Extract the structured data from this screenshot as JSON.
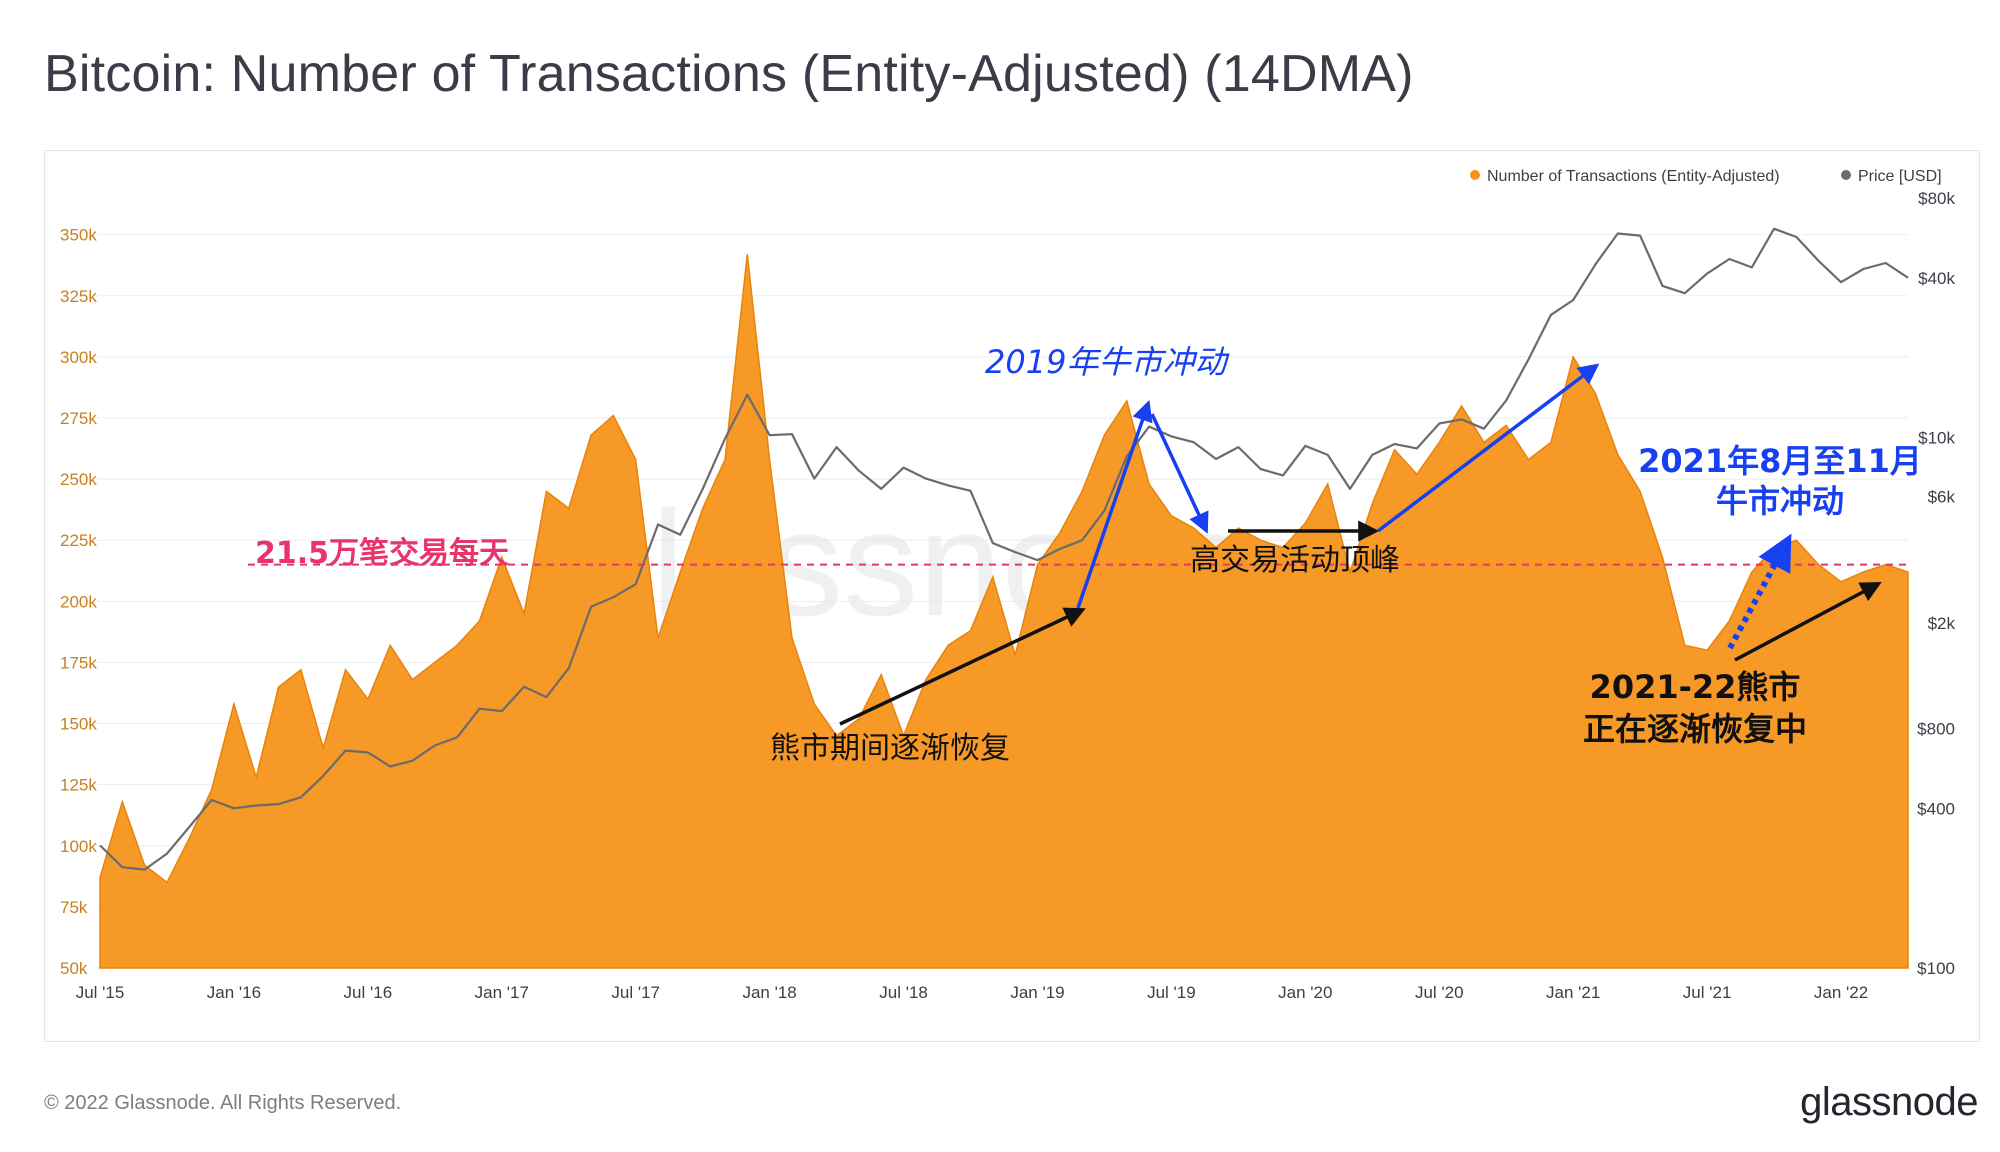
{
  "header": {
    "title": "Bitcoin: Number of Transactions (Entity-Adjusted) (14DMA)"
  },
  "footer": {
    "copyright": "© 2022 Glassnode. All Rights Reserved.",
    "logo": "glassnode"
  },
  "watermark": "glassnode",
  "colors": {
    "transactions": "#f7931a",
    "price": "#6b6b6b",
    "threshold": "#e8336b",
    "blue_annotation": "#1640f0",
    "black_annotation": "#111111",
    "grid": "#eceef2",
    "left_ticks": "#c8801f"
  },
  "chart_data": {
    "type": "area",
    "title": "Bitcoin: Number of Transactions (Entity-Adjusted) (14DMA)",
    "x_ticks": [
      "Jul '15",
      "Jan '16",
      "Jul '16",
      "Jan '17",
      "Jul '17",
      "Jan '18",
      "Jul '18",
      "Jan '19",
      "Jul '19",
      "Jan '20",
      "Jul '20",
      "Jan '21",
      "Jul '21",
      "Jan '22"
    ],
    "x_range": [
      "2015-07",
      "2022-04"
    ],
    "y_left": {
      "ticks": [
        "50k",
        "75k",
        "100k",
        "125k",
        "150k",
        "175k",
        "200k",
        "225k",
        "250k",
        "275k",
        "300k",
        "325k",
        "350k"
      ],
      "range": [
        50000,
        365000
      ]
    },
    "y_right": {
      "scale": "log",
      "ticks": [
        "$100",
        "$400",
        "$800",
        "$2k",
        "$6k",
        "$10k",
        "$40k",
        "$80k"
      ],
      "range": [
        100,
        80000
      ]
    },
    "legend": {
      "position": "top-right"
    },
    "grid": true,
    "series": [
      {
        "name": "Number of Transactions (Entity-Adjusted)",
        "axis": "left",
        "style": "area",
        "points": [
          [
            "2015-07",
            87000
          ],
          [
            "2015-08",
            118000
          ],
          [
            "2015-09",
            92000
          ],
          [
            "2015-10",
            85000
          ],
          [
            "2015-11",
            103000
          ],
          [
            "2015-12",
            123000
          ],
          [
            "2016-01",
            158000
          ],
          [
            "2016-02",
            128000
          ],
          [
            "2016-03",
            165000
          ],
          [
            "2016-04",
            172000
          ],
          [
            "2016-05",
            140000
          ],
          [
            "2016-06",
            172000
          ],
          [
            "2016-07",
            160000
          ],
          [
            "2016-08",
            182000
          ],
          [
            "2016-09",
            168000
          ],
          [
            "2016-10",
            175000
          ],
          [
            "2016-11",
            182000
          ],
          [
            "2016-12",
            192000
          ],
          [
            "2017-01",
            218000
          ],
          [
            "2017-02",
            195000
          ],
          [
            "2017-03",
            245000
          ],
          [
            "2017-04",
            238000
          ],
          [
            "2017-05",
            268000
          ],
          [
            "2017-06",
            276000
          ],
          [
            "2017-07",
            258000
          ],
          [
            "2017-08",
            185000
          ],
          [
            "2017-09",
            212000
          ],
          [
            "2017-10",
            238000
          ],
          [
            "2017-11",
            258000
          ],
          [
            "2017-12",
            342000
          ],
          [
            "2018-01",
            258000
          ],
          [
            "2018-02",
            185000
          ],
          [
            "2018-03",
            158000
          ],
          [
            "2018-04",
            145000
          ],
          [
            "2018-05",
            152000
          ],
          [
            "2018-06",
            170000
          ],
          [
            "2018-07",
            145000
          ],
          [
            "2018-08",
            168000
          ],
          [
            "2018-09",
            182000
          ],
          [
            "2018-10",
            188000
          ],
          [
            "2018-11",
            210000
          ],
          [
            "2018-12",
            178000
          ],
          [
            "2019-01",
            215000
          ],
          [
            "2019-02",
            228000
          ],
          [
            "2019-03",
            245000
          ],
          [
            "2019-04",
            268000
          ],
          [
            "2019-05",
            282000
          ],
          [
            "2019-06",
            248000
          ],
          [
            "2019-07",
            235000
          ],
          [
            "2019-08",
            230000
          ],
          [
            "2019-09",
            222000
          ],
          [
            "2019-10",
            230000
          ],
          [
            "2019-11",
            225000
          ],
          [
            "2019-12",
            222000
          ],
          [
            "2020-01",
            232000
          ],
          [
            "2020-02",
            248000
          ],
          [
            "2020-03",
            212000
          ],
          [
            "2020-04",
            240000
          ],
          [
            "2020-05",
            262000
          ],
          [
            "2020-06",
            252000
          ],
          [
            "2020-07",
            265000
          ],
          [
            "2020-08",
            280000
          ],
          [
            "2020-09",
            265000
          ],
          [
            "2020-10",
            272000
          ],
          [
            "2020-11",
            258000
          ],
          [
            "2020-12",
            265000
          ],
          [
            "2021-01",
            300000
          ],
          [
            "2021-02",
            285000
          ],
          [
            "2021-03",
            260000
          ],
          [
            "2021-04",
            245000
          ],
          [
            "2021-05",
            218000
          ],
          [
            "2021-06",
            182000
          ],
          [
            "2021-07",
            180000
          ],
          [
            "2021-08",
            192000
          ],
          [
            "2021-09",
            212000
          ],
          [
            "2021-10",
            222000
          ],
          [
            "2021-11",
            225000
          ],
          [
            "2021-12",
            215000
          ],
          [
            "2022-01",
            208000
          ],
          [
            "2022-02",
            212000
          ],
          [
            "2022-03",
            215000
          ],
          [
            "2022-04",
            212000
          ]
        ]
      },
      {
        "name": "Price [USD]",
        "axis": "right",
        "style": "line",
        "points": [
          [
            "2015-07",
            290
          ],
          [
            "2015-08",
            240
          ],
          [
            "2015-09",
            235
          ],
          [
            "2015-10",
            270
          ],
          [
            "2015-11",
            340
          ],
          [
            "2015-12",
            430
          ],
          [
            "2016-01",
            400
          ],
          [
            "2016-02",
            410
          ],
          [
            "2016-03",
            415
          ],
          [
            "2016-04",
            440
          ],
          [
            "2016-05",
            530
          ],
          [
            "2016-06",
            660
          ],
          [
            "2016-07",
            650
          ],
          [
            "2016-08",
            575
          ],
          [
            "2016-09",
            605
          ],
          [
            "2016-10",
            690
          ],
          [
            "2016-11",
            740
          ],
          [
            "2016-12",
            950
          ],
          [
            "2017-01",
            930
          ],
          [
            "2017-02",
            1150
          ],
          [
            "2017-03",
            1050
          ],
          [
            "2017-04",
            1350
          ],
          [
            "2017-05",
            2300
          ],
          [
            "2017-06",
            2500
          ],
          [
            "2017-07",
            2800
          ],
          [
            "2017-08",
            4700
          ],
          [
            "2017-09",
            4300
          ],
          [
            "2017-10",
            6400
          ],
          [
            "2017-11",
            9900
          ],
          [
            "2017-12",
            14500
          ],
          [
            "2018-01",
            10200
          ],
          [
            "2018-02",
            10300
          ],
          [
            "2018-03",
            7000
          ],
          [
            "2018-04",
            9200
          ],
          [
            "2018-05",
            7500
          ],
          [
            "2018-06",
            6400
          ],
          [
            "2018-07",
            7700
          ],
          [
            "2018-08",
            7000
          ],
          [
            "2018-09",
            6600
          ],
          [
            "2018-10",
            6300
          ],
          [
            "2018-11",
            4000
          ],
          [
            "2018-12",
            3700
          ],
          [
            "2019-01",
            3450
          ],
          [
            "2019-02",
            3800
          ],
          [
            "2019-03",
            4100
          ],
          [
            "2019-04",
            5300
          ],
          [
            "2019-05",
            8500
          ],
          [
            "2019-06",
            11000
          ],
          [
            "2019-07",
            10100
          ],
          [
            "2019-08",
            9600
          ],
          [
            "2019-09",
            8300
          ],
          [
            "2019-10",
            9200
          ],
          [
            "2019-11",
            7600
          ],
          [
            "2019-12",
            7200
          ],
          [
            "2020-01",
            9300
          ],
          [
            "2020-02",
            8600
          ],
          [
            "2020-03",
            6400
          ],
          [
            "2020-04",
            8600
          ],
          [
            "2020-05",
            9450
          ],
          [
            "2020-06",
            9100
          ],
          [
            "2020-07",
            11300
          ],
          [
            "2020-08",
            11700
          ],
          [
            "2020-09",
            10800
          ],
          [
            "2020-10",
            13800
          ],
          [
            "2020-11",
            19700
          ],
          [
            "2020-12",
            29000
          ],
          [
            "2021-01",
            33000
          ],
          [
            "2021-02",
            45000
          ],
          [
            "2021-03",
            58800
          ],
          [
            "2021-04",
            57700
          ],
          [
            "2021-05",
            37300
          ],
          [
            "2021-06",
            35000
          ],
          [
            "2021-07",
            41500
          ],
          [
            "2021-08",
            47100
          ],
          [
            "2021-09",
            43800
          ],
          [
            "2021-10",
            61300
          ],
          [
            "2021-11",
            57000
          ],
          [
            "2021-12",
            46300
          ],
          [
            "2022-01",
            38500
          ],
          [
            "2022-02",
            43200
          ],
          [
            "2022-03",
            45500
          ],
          [
            "2022-04",
            40000
          ]
        ]
      }
    ],
    "annotations": {
      "threshold": {
        "label": "21.5万笔交易每天",
        "value": 215000
      },
      "bear_recovery": {
        "label": "熊市期间逐渐恢复"
      },
      "bull_2019": {
        "label": "2019年牛市冲动"
      },
      "peak_activity": {
        "label": "高交易活动顶峰"
      },
      "bull_2021": {
        "label_line1": "2021年8月至11月",
        "label_line2": "牛市冲动"
      },
      "bear_2122": {
        "label_line1": "2021-22熊市",
        "label_line2": "正在逐渐恢复中"
      }
    }
  }
}
